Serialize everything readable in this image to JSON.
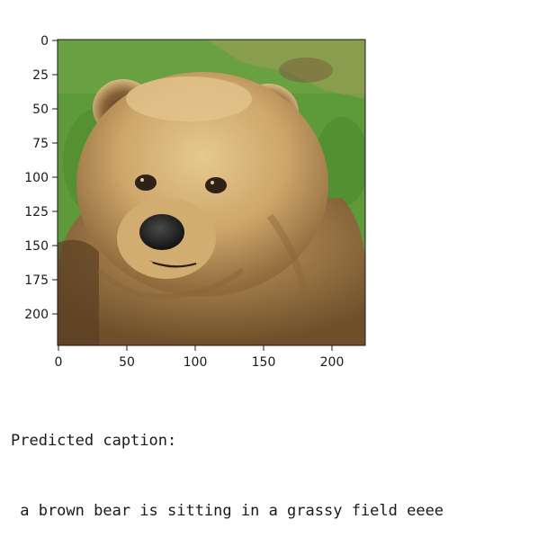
{
  "figure": {
    "image_subject": "brown bear sitting in grass",
    "x_ticks": [
      "0",
      "50",
      "100",
      "150",
      "200"
    ],
    "y_ticks": [
      "0",
      "25",
      "50",
      "75",
      "100",
      "125",
      "150",
      "175",
      "200"
    ]
  },
  "output": {
    "label": "Predicted caption:",
    "caption": " a brown bear is sitting in a grassy field eeee"
  }
}
